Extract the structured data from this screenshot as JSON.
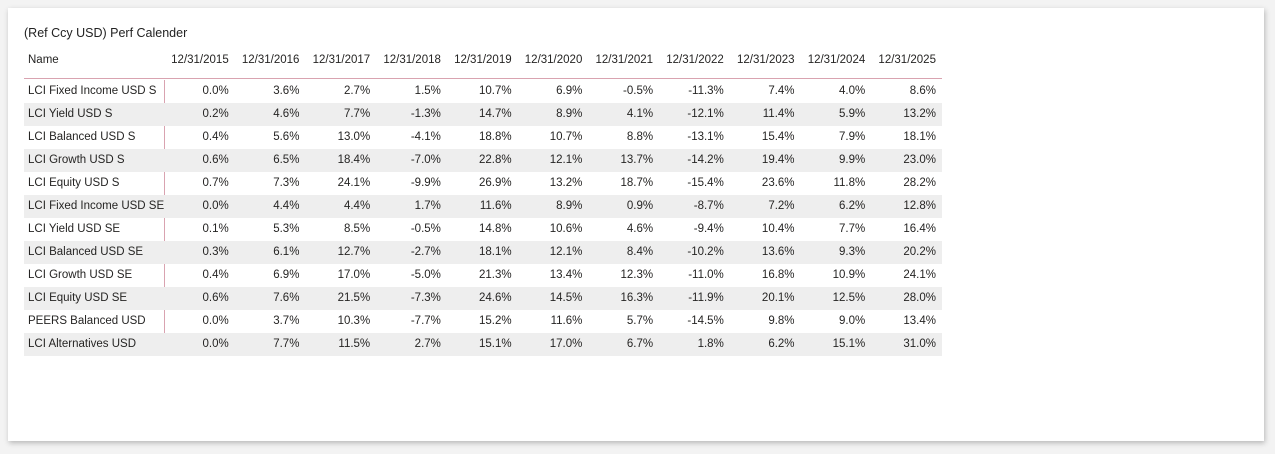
{
  "title": "(Ref Ccy USD) Perf Calender",
  "table": {
    "header": [
      "Name",
      "12/31/2015",
      "12/31/2016",
      "12/31/2017",
      "12/31/2018",
      "12/31/2019",
      "12/31/2020",
      "12/31/2021",
      "12/31/2022",
      "12/31/2023",
      "12/31/2024",
      "12/31/2025"
    ],
    "rows": [
      [
        "LCI Fixed Income USD S",
        "0.0%",
        "3.6%",
        "2.7%",
        "1.5%",
        "10.7%",
        "6.9%",
        "-0.5%",
        "-11.3%",
        "7.4%",
        "4.0%",
        "8.6%"
      ],
      [
        "LCI Yield USD S",
        "0.2%",
        "4.6%",
        "7.7%",
        "-1.3%",
        "14.7%",
        "8.9%",
        "4.1%",
        "-12.1%",
        "11.4%",
        "5.9%",
        "13.2%"
      ],
      [
        "LCI Balanced USD S",
        "0.4%",
        "5.6%",
        "13.0%",
        "-4.1%",
        "18.8%",
        "10.7%",
        "8.8%",
        "-13.1%",
        "15.4%",
        "7.9%",
        "18.1%"
      ],
      [
        "LCI Growth USD S",
        "0.6%",
        "6.5%",
        "18.4%",
        "-7.0%",
        "22.8%",
        "12.1%",
        "13.7%",
        "-14.2%",
        "19.4%",
        "9.9%",
        "23.0%"
      ],
      [
        "LCI Equity USD S",
        "0.7%",
        "7.3%",
        "24.1%",
        "-9.9%",
        "26.9%",
        "13.2%",
        "18.7%",
        "-15.4%",
        "23.6%",
        "11.8%",
        "28.2%"
      ],
      [
        "LCI Fixed Income USD SE",
        "0.0%",
        "4.4%",
        "4.4%",
        "1.7%",
        "11.6%",
        "8.9%",
        "0.9%",
        "-8.7%",
        "7.2%",
        "6.2%",
        "12.8%"
      ],
      [
        "LCI Yield USD SE",
        "0.1%",
        "5.3%",
        "8.5%",
        "-0.5%",
        "14.8%",
        "10.6%",
        "4.6%",
        "-9.4%",
        "10.4%",
        "7.7%",
        "16.4%"
      ],
      [
        "LCI Balanced USD SE",
        "0.3%",
        "6.1%",
        "12.7%",
        "-2.7%",
        "18.1%",
        "12.1%",
        "8.4%",
        "-10.2%",
        "13.6%",
        "9.3%",
        "20.2%"
      ],
      [
        "LCI Growth USD SE",
        "0.4%",
        "6.9%",
        "17.0%",
        "-5.0%",
        "21.3%",
        "13.4%",
        "12.3%",
        "-11.0%",
        "16.8%",
        "10.9%",
        "24.1%"
      ],
      [
        "LCI Equity USD SE",
        "0.6%",
        "7.6%",
        "21.5%",
        "-7.3%",
        "24.6%",
        "14.5%",
        "16.3%",
        "-11.9%",
        "20.1%",
        "12.5%",
        "28.0%"
      ],
      [
        "PEERS Balanced USD",
        "0.0%",
        "3.7%",
        "10.3%",
        "-7.7%",
        "15.2%",
        "11.6%",
        "5.7%",
        "-14.5%",
        "9.8%",
        "9.0%",
        "13.4%"
      ],
      [
        "LCI Alternatives USD",
        "0.0%",
        "7.7%",
        "11.5%",
        "2.7%",
        "15.1%",
        "17.0%",
        "6.7%",
        "1.8%",
        "6.2%",
        "15.1%",
        "31.0%"
      ]
    ]
  }
}
